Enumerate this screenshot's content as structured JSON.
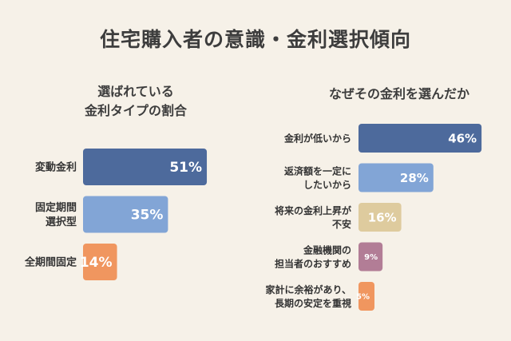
{
  "title": "住宅購入者の意識・金利選択傾向",
  "charts": [
    {
      "subtitle_lines": [
        "選ばれている",
        "金利タイプの割合"
      ]
    },
    {
      "subtitle_lines": [
        "なぜその金利を選んだか"
      ]
    }
  ],
  "chart_data": [
    {
      "type": "bar",
      "orientation": "horizontal",
      "title": "選ばれている金利タイプの割合",
      "categories": [
        [
          "変動金利"
        ],
        [
          "固定期間",
          "選択型"
        ],
        [
          "全期間固定"
        ]
      ],
      "values": [
        51,
        35,
        14
      ],
      "value_labels": [
        "51%",
        "35%",
        "14%"
      ],
      "colors": [
        "#4d6a9c",
        "#82a5d6",
        "#f0965f"
      ],
      "grid": false
    },
    {
      "type": "bar",
      "orientation": "horizontal",
      "title": "なぜその金利を選んだか",
      "categories": [
        [
          "金利が低いから"
        ],
        [
          "返済額を一定に",
          "したいから"
        ],
        [
          "将来の金利上昇が",
          "不安"
        ],
        [
          "金融機関の",
          "担当者のおすすめ"
        ],
        [
          "家計に余裕があり、",
          "長期の安定を重視"
        ]
      ],
      "values": [
        46,
        28,
        16,
        9,
        5
      ],
      "value_labels": [
        "46%",
        "28%",
        "16%",
        "9%",
        "5%"
      ],
      "colors": [
        "#4d6a9c",
        "#82a5d6",
        "#decb9e",
        "#b27d96",
        "#f0965f"
      ],
      "grid": false
    }
  ]
}
